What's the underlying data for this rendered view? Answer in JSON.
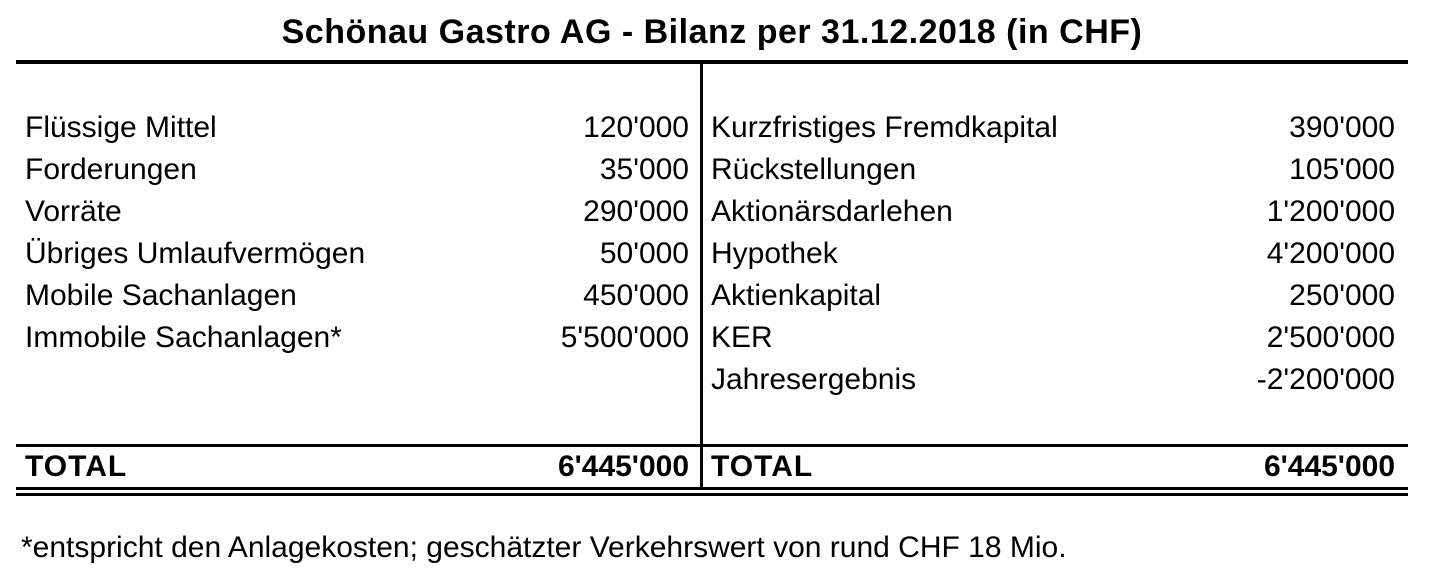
{
  "title": "Schönau Gastro AG - Bilanz per 31.12.2018 (in CHF)",
  "colors": {
    "text": "#000000",
    "background": "#ffffff",
    "rules": "#000000"
  },
  "balance_sheet": {
    "currency": "CHF",
    "assets": {
      "rows": [
        {
          "label": "Flüssige Mittel",
          "value": "120'000"
        },
        {
          "label": "Forderungen",
          "value": "35'000"
        },
        {
          "label": "Vorräte",
          "value": "290'000"
        },
        {
          "label": "Übriges Umlaufvermögen",
          "value": "50'000"
        },
        {
          "label": "Mobile Sachanlagen",
          "value": "450'000"
        },
        {
          "label": "Immobile Sachanlagen*",
          "value": "5'500'000"
        }
      ],
      "total_label": "TOTAL",
      "total_value": "6'445'000"
    },
    "liabilities": {
      "rows": [
        {
          "label": "Kurzfristiges Fremdkapital",
          "value": "390'000"
        },
        {
          "label": "Rückstellungen",
          "value": "105'000"
        },
        {
          "label": "Aktionärsdarlehen",
          "value": "1'200'000"
        },
        {
          "label": "Hypothek",
          "value": "4'200'000"
        },
        {
          "label": "Aktienkapital",
          "value": "250'000"
        },
        {
          "label": "KER",
          "value": "2'500'000"
        },
        {
          "label": "Jahresergebnis",
          "value": "-2'200'000"
        }
      ],
      "total_label": "TOTAL",
      "total_value": "6'445'000"
    }
  },
  "footnote": "*entspricht den Anlagekosten; geschätzter Verkehrswert von rund CHF 18 Mio."
}
